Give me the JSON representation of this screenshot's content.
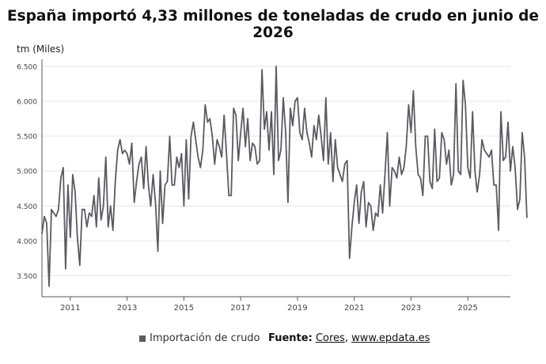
{
  "title": "España importó 4,33 millones de toneladas de crudo en junio de 2026",
  "unit_label": "tm (Miles)",
  "legend_label": "Importación de crudo",
  "source": {
    "prefix": "Fuente:",
    "link1": "Cores",
    "separator": ", ",
    "link2": "www.epdata.es"
  },
  "colors": {
    "series": "#5a5a62",
    "grid": "#e4e4e4",
    "axis": "#555555"
  },
  "chart_data": {
    "type": "line",
    "ylim": [
      3200,
      6600
    ],
    "xlim": [
      2010.0,
      2026.5
    ],
    "y_ticks": [
      3500,
      4000,
      4500,
      5000,
      5500,
      6000,
      6500
    ],
    "y_tick_labels": [
      "3.500",
      "4.000",
      "4.500",
      "5.000",
      "5.500",
      "6.000",
      "6.500"
    ],
    "x_ticks": [
      2011,
      2013,
      2015,
      2017,
      2019,
      2021,
      2023,
      2025
    ],
    "x_tick_labels": [
      "2011",
      "2013",
      "2015",
      "2017",
      "2019",
      "2021",
      "2023",
      "2025"
    ],
    "grid": "horizontal",
    "series": [
      {
        "name": "Importación de crudo",
        "start": "2010-01",
        "frequency": "monthly",
        "values": [
          4100,
          4350,
          4250,
          3350,
          4450,
          4400,
          4350,
          4450,
          4900,
          5050,
          3600,
          4800,
          4050,
          4950,
          4700,
          4050,
          3650,
          4450,
          4450,
          4200,
          4400,
          4350,
          4650,
          4200,
          4900,
          4300,
          4500,
          5200,
          4200,
          4500,
          4150,
          4850,
          5300,
          5450,
          5250,
          5300,
          5250,
          5100,
          5400,
          4550,
          4850,
          5100,
          5200,
          4750,
          5350,
          4800,
          4500,
          4950,
          4550,
          3850,
          5000,
          4250,
          4800,
          4850,
          5500,
          4800,
          4800,
          5200,
          5050,
          5250,
          4500,
          5450,
          4600,
          5500,
          5700,
          5450,
          5200,
          5050,
          5300,
          5950,
          5700,
          5750,
          5500,
          5100,
          5450,
          5350,
          5200,
          5800,
          5250,
          4650,
          4650,
          5900,
          5800,
          5150,
          5550,
          5900,
          5350,
          5750,
          5150,
          5400,
          5350,
          5100,
          5150,
          6450,
          5600,
          5850,
          5300,
          5850,
          4950,
          6500,
          5150,
          5300,
          6050,
          5550,
          4550,
          5900,
          5650,
          6000,
          6050,
          5550,
          5450,
          5900,
          5550,
          5400,
          5200,
          5650,
          5450,
          5800,
          5500,
          5150,
          6050,
          5100,
          5550,
          4850,
          5450,
          5050,
          4950,
          4850,
          5100,
          5150,
          3750,
          4200,
          4550,
          4800,
          4250,
          4700,
          4850,
          4200,
          4550,
          4500,
          4150,
          4400,
          4350,
          4800,
          4400,
          4950,
          5550,
          4500,
          5050,
          5000,
          4900,
          5200,
          4950,
          5050,
          5350,
          5950,
          5550,
          6150,
          5350,
          4950,
          4900,
          4650,
          5500,
          5500,
          4850,
          4750,
          5600,
          4850,
          4900,
          5550,
          5450,
          5100,
          5300,
          4800,
          4950,
          6250,
          5000,
          4950,
          6300,
          5950,
          5050,
          4900,
          5850,
          5000,
          4700,
          4950,
          5450,
          5300,
          5250,
          5200,
          5300,
          4800,
          4800,
          4150,
          5850,
          5150,
          5200,
          5700,
          5000,
          5350,
          5050,
          4450,
          4600,
          5550,
          5200,
          4330
        ]
      }
    ]
  }
}
